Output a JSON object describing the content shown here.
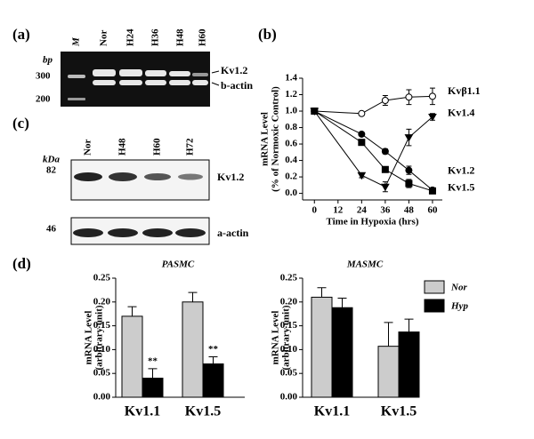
{
  "panel_a": {
    "label": "(a)",
    "lanes": [
      "M",
      "Nor",
      "H24",
      "H36",
      "H48",
      "H60"
    ],
    "unit": "bp",
    "markers": [
      300,
      200
    ],
    "bands": [
      "Kv1.2",
      "b-actin"
    ]
  },
  "panel_c": {
    "label": "(c)",
    "lanes": [
      "Nor",
      "H48",
      "H60",
      "H72"
    ],
    "unit": "kDa",
    "markers": [
      82,
      46
    ],
    "bands": [
      "Kv1.2",
      "a-actin"
    ]
  },
  "chart_data": [
    {
      "type": "line",
      "panel_label": "(b)",
      "ylabel": [
        "mRNA Level",
        "(% of Normoxic Control)"
      ],
      "xlabel": "Time in Hypoxia (hrs)",
      "x": [
        0,
        24,
        36,
        48,
        60
      ],
      "xlim": [
        -6,
        65
      ],
      "xticks": [
        0,
        12,
        24,
        36,
        48,
        60
      ],
      "ylim": [
        -0.08,
        1.4
      ],
      "yticks": [
        {
          "value": 0,
          "label": "0.0"
        },
        0.2,
        0.4,
        0.6,
        0.8,
        {
          "value": 1,
          "label": "1.0"
        },
        1.2,
        1.4
      ],
      "series": [
        {
          "name": "Kvβ1.1",
          "color": "#000000",
          "marker": "circle-open",
          "values": [
            1.0,
            0.97,
            1.13,
            1.17,
            1.18
          ],
          "errors": [
            0,
            0.02,
            0.06,
            0.09,
            0.1
          ]
        },
        {
          "name": "Kv1.4",
          "color": "#000000",
          "marker": "triangle-down",
          "values": [
            1.0,
            0.22,
            0.08,
            0.68,
            0.93
          ],
          "errors": [
            0,
            0.03,
            0.06,
            0.1,
            0.04
          ]
        },
        {
          "name": "Kv1.2",
          "color": "#000000",
          "marker": "circle",
          "values": [
            1.0,
            0.72,
            0.51,
            0.28,
            0.04
          ],
          "errors": [
            0,
            0.02,
            0.03,
            0.05,
            0.02
          ]
        },
        {
          "name": "Kv1.5",
          "color": "#000000",
          "marker": "square",
          "values": [
            1.0,
            0.62,
            0.29,
            0.12,
            0.03
          ],
          "errors": [
            0,
            0.02,
            0.03,
            0.05,
            0.02
          ]
        }
      ]
    },
    {
      "type": "bar",
      "panel_label": "(d)",
      "title": "PASMC",
      "ylabel": [
        "mRNA Level",
        "(arbitrary unit)"
      ],
      "categories": [
        "Kv1.1",
        "Kv1.5"
      ],
      "ylim": [
        0,
        0.25
      ],
      "yticks": [
        {
          "value": 0,
          "label": "0.00"
        },
        0.05,
        {
          "value": 0.1,
          "label": "0.10"
        },
        0.15,
        {
          "value": 0.2,
          "label": "0.20"
        },
        0.25
      ],
      "series": [
        {
          "color": "#cccccc",
          "values": [
            0.17,
            0.2
          ],
          "errors": [
            0.02,
            0.02
          ]
        },
        {
          "color": "#000000",
          "values": [
            0.04,
            0.07
          ],
          "errors": [
            0.02,
            0.015
          ],
          "annotations": [
            "**",
            "**"
          ]
        }
      ]
    },
    {
      "type": "bar",
      "title": "MASMC",
      "ylabel": [
        "mRNA Level",
        "(arbitrary unit)"
      ],
      "categories": [
        "Kv1.1",
        "Kv1.5"
      ],
      "ylim": [
        0,
        0.25
      ],
      "legend": "top-right",
      "yticks": [
        {
          "value": 0,
          "label": "0.00"
        },
        0.05,
        {
          "value": 0.1,
          "label": "0.10"
        },
        0.15,
        {
          "value": 0.2,
          "label": "0.20"
        },
        0.25
      ],
      "series": [
        {
          "name": "Nor",
          "color": "#cccccc",
          "values": [
            0.21,
            0.107
          ],
          "errors": [
            0.02,
            0.05
          ]
        },
        {
          "name": "Hyp",
          "color": "#000000",
          "values": [
            0.188,
            0.137
          ],
          "errors": [
            0.02,
            0.027
          ]
        }
      ]
    }
  ]
}
